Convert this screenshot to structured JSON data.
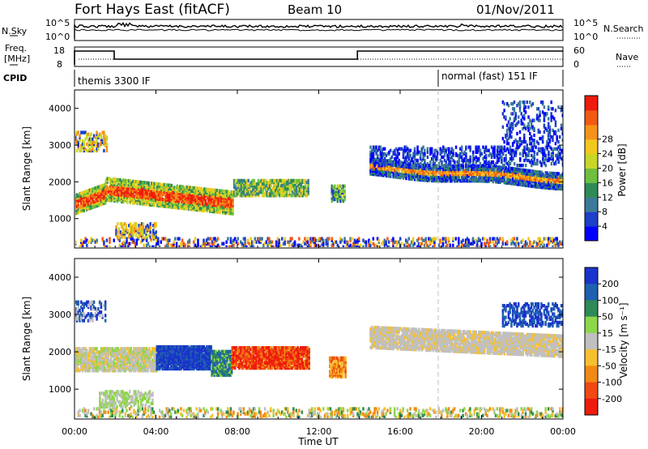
{
  "header": {
    "station": "Fort Hays East (fitACF)",
    "beam": "Beam 10",
    "date": "01/Nov/2011"
  },
  "top_panels": {
    "nsky_label": "N.Sky",
    "nsky_tick_top": "10^5",
    "nsky_tick_bottom": "10^0",
    "nsearch_label": "N.Search",
    "freq_label_1": "Freq.",
    "freq_label_2": "[MHz]",
    "freq_tick_top": "18",
    "freq_tick_bottom": "8",
    "nave_label": "Nave",
    "nave_tick_top": "60",
    "nave_tick_bottom": "0",
    "cpid_label": "CPID",
    "cpid_mode_1": "themis 3300 IF",
    "cpid_mode_2": "normal (fast) 151 IF"
  },
  "chart_data": [
    {
      "type": "heatmap",
      "name": "power",
      "ylabel": "Slant Range [km]",
      "ylim": [
        200,
        4500
      ],
      "yticks": [
        "1000",
        "2000",
        "3000",
        "4000"
      ],
      "colorbar_label": "Power [dB]",
      "colorbar_ticks": [
        "4",
        "8",
        "12",
        "16",
        "20",
        "24",
        "28"
      ],
      "colors": [
        "#0000ff",
        "#1e3fc8",
        "#3d7a9a",
        "#2e8b57",
        "#6fbf3f",
        "#c8d62a",
        "#f2c81e",
        "#f5921a",
        "#f25a12",
        "#ee1c0e"
      ]
    },
    {
      "type": "heatmap",
      "name": "velocity",
      "ylabel": "Slant Range [km]",
      "ylim": [
        200,
        4500
      ],
      "yticks": [
        "1000",
        "2000",
        "3000",
        "4000"
      ],
      "colorbar_label": "Velocity [m s⁻¹]",
      "colorbar_ticks": [
        "200",
        "100",
        "50",
        "15",
        "-15",
        "-50",
        "-100",
        "-200"
      ],
      "colors": [
        "#1a33cc",
        "#2060b0",
        "#2e8b57",
        "#8ed64a",
        "#c0c0c0",
        "#f5c030",
        "#f08a14",
        "#f04a12",
        "#ee1c0e"
      ],
      "xlabel": "Time UT",
      "xticks": [
        "00:00",
        "04:00",
        "08:00",
        "12:00",
        "16:00",
        "20:00",
        "00:00"
      ]
    }
  ]
}
